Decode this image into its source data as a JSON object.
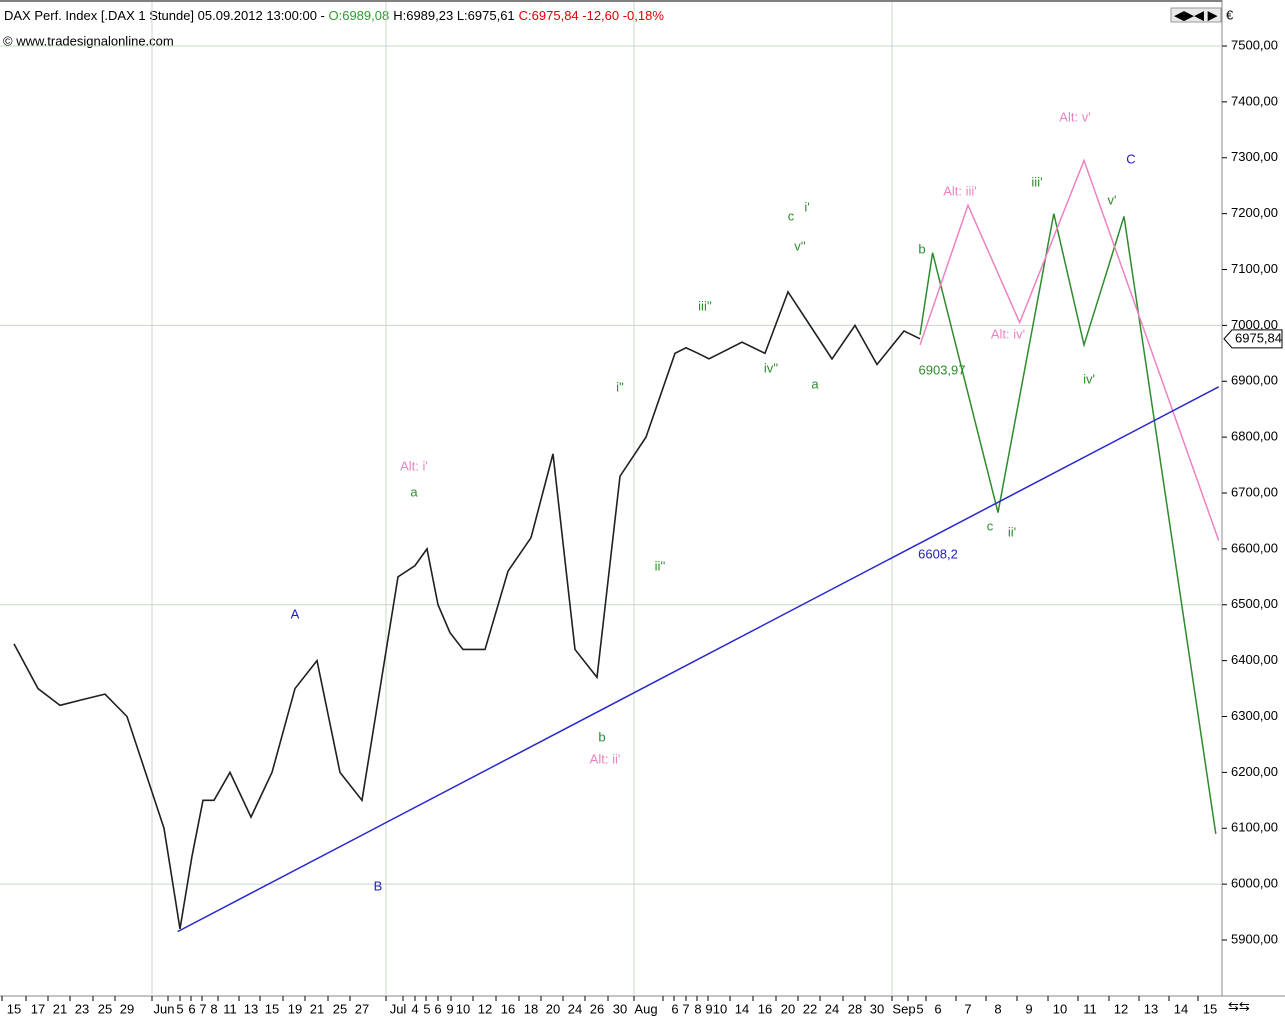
{
  "header": {
    "title": "DAX Perf. Index [.DAX  1 Stunde] 05.09.2012 13:00:00 - ",
    "open": "O:6989,08",
    "high_low": "H:6989,23 L:6975,61",
    "close": "C:6975,84 -12,60 -0,18%",
    "watermark": "© www.tradesignalonline.com",
    "currency": "€"
  },
  "chart_data": {
    "type": "line",
    "color": "#202020",
    "categories": [
      "15",
      "17",
      "21",
      "23",
      "25",
      "29",
      "Jun",
      "5",
      "6",
      "7",
      "8",
      "11",
      "13",
      "15",
      "19",
      "21",
      "25",
      "27",
      "Jul",
      "4",
      "5",
      "6",
      "9",
      "10",
      "12",
      "16",
      "18",
      "20",
      "24",
      "26",
      "30",
      "Aug",
      "6",
      "7",
      "8",
      "9",
      "10",
      "14",
      "16",
      "20",
      "22",
      "24",
      "28",
      "30",
      "Sep",
      "5",
      "6",
      "7",
      "8",
      "9",
      "10",
      "11",
      "12",
      "13",
      "14",
      "15"
    ],
    "values": [
      6430,
      6350,
      6320,
      6330,
      6340,
      6300,
      6100,
      5920,
      6050,
      6150,
      6150,
      6200,
      6120,
      6200,
      6350,
      6400,
      6200,
      6150,
      6550,
      6570,
      6600,
      6500,
      6450,
      6420,
      6420,
      6560,
      6620,
      6770,
      6420,
      6370,
      6730,
      6800,
      6950,
      6960,
      6950,
      6940,
      6950,
      6970,
      6950,
      7060,
      7000,
      6940,
      7000,
      6930,
      6990,
      6976,
      null,
      null,
      null,
      null,
      null,
      null,
      null,
      null,
      null,
      null
    ],
    "ylim": [
      5840,
      7580
    ],
    "yticks": [
      {
        "value": 5900,
        "label": "5900,00"
      },
      {
        "value": 6000,
        "label": "6000,00"
      },
      {
        "value": 6100,
        "label": "6100,00"
      },
      {
        "value": 6200,
        "label": "6200,00"
      },
      {
        "value": 6300,
        "label": "6300,00"
      },
      {
        "value": 6400,
        "label": "6400,00"
      },
      {
        "value": 6500,
        "label": "6500,00"
      },
      {
        "value": 6600,
        "label": "6600,00"
      },
      {
        "value": 6700,
        "label": "6700,00"
      },
      {
        "value": 6800,
        "label": "6800,00"
      },
      {
        "value": 6900,
        "label": "6900,00"
      },
      {
        "value": 7000,
        "label": "7000,00"
      },
      {
        "value": 7100,
        "label": "7100,00"
      },
      {
        "value": 7200,
        "label": "7200,00"
      },
      {
        "value": 7300,
        "label": "7300,00"
      },
      {
        "value": 7400,
        "label": "7400,00"
      },
      {
        "value": 7500,
        "label": "7500,00"
      }
    ],
    "grid_yticks": [
      6000,
      6500,
      7000,
      7500
    ],
    "last_price": {
      "value": 6975.84,
      "label": "6975,84"
    },
    "lines": [
      {
        "color": "#2e8b2e",
        "x": [
          45,
          45.7,
          48,
          49.8,
          50.8,
          52.1,
          55.2
        ],
        "values": [
          6983,
          7130,
          6665,
          7200,
          6965,
          7195,
          6090
        ]
      },
      {
        "color": "#ee82c0",
        "x": [
          45,
          47,
          48.7,
          50.8,
          55.3
        ],
        "values": [
          6965,
          7215,
          7005,
          7295,
          6615
        ]
      },
      {
        "color": "#2828d0",
        "x": [
          6.85,
          55.3
        ],
        "values": [
          5915,
          6890
        ]
      }
    ],
    "annotations": [
      {
        "text": "A",
        "color": "#2020c0"
      },
      {
        "text": "B",
        "color": "#2020c0"
      },
      {
        "text": "C",
        "color": "#2020c0"
      },
      {
        "text": "a",
        "color": "#2e8b2e"
      },
      {
        "text": "b",
        "color": "#2e8b2e"
      },
      {
        "text": "Alt: i'",
        "color": "#ee82c0"
      },
      {
        "text": "Alt: ii'",
        "color": "#ee82c0"
      },
      {
        "text": "i''",
        "color": "#2e8b2e"
      },
      {
        "text": "ii''",
        "color": "#2e8b2e"
      },
      {
        "text": "iii''",
        "color": "#2e8b2e"
      },
      {
        "text": "iv''",
        "color": "#2e8b2e"
      },
      {
        "text": "v''",
        "color": "#2e8b2e"
      },
      {
        "text": "c",
        "color": "#2e8b2e"
      },
      {
        "text": "i'",
        "color": "#2e8b2e"
      },
      {
        "text": "a",
        "color": "#2e8b2e"
      },
      {
        "text": "b",
        "color": "#2e8b2e"
      },
      {
        "text": "c",
        "color": "#2e8b2e"
      },
      {
        "text": "ii'",
        "color": "#2e8b2e"
      },
      {
        "text": "iii'",
        "color": "#2e8b2e"
      },
      {
        "text": "iv'",
        "color": "#2e8b2e"
      },
      {
        "text": "v'",
        "color": "#2e8b2e"
      },
      {
        "text": "Alt: iii'",
        "color": "#ee82c0"
      },
      {
        "text": "Alt: iv'",
        "color": "#ee82c0"
      },
      {
        "text": "Alt: v'",
        "color": "#ee82c0"
      },
      {
        "text": "6903,97",
        "color": "#2e8b2e"
      },
      {
        "text": "6608,2",
        "color": "#2020c0"
      }
    ]
  }
}
